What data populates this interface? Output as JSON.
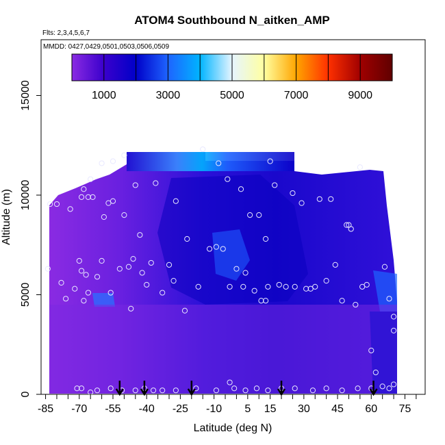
{
  "chart_data": {
    "type": "heatmap",
    "title": "ATOM4 Southbound N_aitken_AMP",
    "flights_note": "Flts: 2,3,4,5,6,7",
    "dates_note": "MMDD: 0427,0429,0501,0503,0506,0509",
    "xlabel": "Latitude (deg N)",
    "ylabel": "Altitude (m)",
    "xlim": [
      -87,
      84
    ],
    "ylim": [
      0,
      17800
    ],
    "x_ticks": [
      -85,
      -70,
      -55,
      -40,
      -25,
      -10,
      5,
      15,
      30,
      45,
      60,
      75
    ],
    "x_ticks_minor": [
      -80,
      -75,
      -65,
      -60,
      -50,
      -45,
      -35,
      -30,
      -20,
      -15,
      -5,
      0,
      10,
      20,
      25,
      35,
      40,
      50,
      55,
      65,
      70,
      80
    ],
    "y_ticks": [
      0,
      5000,
      10000,
      15000
    ],
    "colorbar": {
      "min": 0,
      "max": 10000,
      "tick_values": [
        1000,
        3000,
        5000,
        7000,
        9000
      ],
      "boundaries": [
        1000,
        2000,
        3000,
        4000,
        5000,
        6000,
        7000,
        8000,
        9000,
        10000
      ],
      "colors": [
        "#8a2be2",
        "#3a00cc",
        "#0000c8",
        "#1e64ff",
        "#00b4ff",
        "#e6f5ff",
        "#ffffa0",
        "#ffa500",
        "#ff3000",
        "#a00000"
      ]
    },
    "arrow_latitudes": [
      -52,
      -41,
      -20,
      20,
      61
    ],
    "profile_samples": [
      [
        -84,
        6300
      ],
      [
        -83,
        9550
      ],
      [
        -80,
        9550
      ],
      [
        -78,
        5600
      ],
      [
        -76,
        4800
      ],
      [
        -74,
        9300
      ],
      [
        -72,
        5300
      ],
      [
        -70,
        6700
      ],
      [
        -69,
        6200
      ],
      [
        -69,
        9900
      ],
      [
        -68,
        10300
      ],
      [
        -68,
        4700
      ],
      [
        -67,
        6000
      ],
      [
        -66,
        9900
      ],
      [
        -66,
        5100
      ],
      [
        -65,
        10800
      ],
      [
        -64,
        9900
      ],
      [
        -62,
        5900
      ],
      [
        -60,
        11600
      ],
      [
        -60,
        6700
      ],
      [
        -59,
        8900
      ],
      [
        -57,
        9600
      ],
      [
        -56,
        5100
      ],
      [
        -55,
        9700
      ],
      [
        -55,
        11700
      ],
      [
        -52,
        6300
      ],
      [
        -50,
        9000
      ],
      [
        -50,
        12000
      ],
      [
        -48,
        6400
      ],
      [
        -47,
        4300
      ],
      [
        -46,
        6800
      ],
      [
        -45,
        10500
      ],
      [
        -43,
        8000
      ],
      [
        -42,
        6100
      ],
      [
        -40,
        5500
      ],
      [
        -38,
        6600
      ],
      [
        -36,
        10600
      ],
      [
        -33,
        5100
      ],
      [
        -30,
        6500
      ],
      [
        -28,
        5700
      ],
      [
        -27,
        9700
      ],
      [
        -23,
        4200
      ],
      [
        -22,
        7800
      ],
      [
        -17,
        5400
      ],
      [
        -15,
        12300
      ],
      [
        -12,
        7300
      ],
      [
        -9,
        7400
      ],
      [
        -8,
        11600
      ],
      [
        -6,
        7300
      ],
      [
        -4,
        10800
      ],
      [
        -3,
        5400
      ],
      [
        0,
        6300
      ],
      [
        2,
        10300
      ],
      [
        3,
        5400
      ],
      [
        4,
        6100
      ],
      [
        6,
        9000
      ],
      [
        8,
        5200
      ],
      [
        10,
        9000
      ],
      [
        11,
        4700
      ],
      [
        13,
        7800
      ],
      [
        13,
        4700
      ],
      [
        14,
        5400
      ],
      [
        15,
        11700
      ],
      [
        17,
        10500
      ],
      [
        19,
        5500
      ],
      [
        22,
        5400
      ],
      [
        25,
        10100
      ],
      [
        26,
        5400
      ],
      [
        29,
        9600
      ],
      [
        31,
        5300
      ],
      [
        33,
        5300
      ],
      [
        35,
        5400
      ],
      [
        37,
        9800
      ],
      [
        40,
        5700
      ],
      [
        42,
        9800
      ],
      [
        44,
        6500
      ],
      [
        47,
        4700
      ],
      [
        49,
        8500
      ],
      [
        50,
        8500
      ],
      [
        51,
        8300
      ],
      [
        53,
        4500
      ],
      [
        55,
        11400
      ],
      [
        56,
        5400
      ],
      [
        58,
        5500
      ],
      [
        60,
        2200
      ],
      [
        62,
        1100
      ],
      [
        66,
        6400
      ],
      [
        68,
        4800
      ],
      [
        70,
        3900
      ],
      [
        70,
        3200
      ],
      [
        -71,
        300
      ],
      [
        -69,
        300
      ],
      [
        -65,
        100
      ],
      [
        -62,
        200
      ],
      [
        -56,
        300
      ],
      [
        -51,
        200
      ],
      [
        -45,
        200
      ],
      [
        -41,
        300
      ],
      [
        -37,
        200
      ],
      [
        -33,
        200
      ],
      [
        -27,
        200
      ],
      [
        -18,
        300
      ],
      [
        -9,
        200
      ],
      [
        -3,
        600
      ],
      [
        -1,
        300
      ],
      [
        4,
        200
      ],
      [
        9,
        300
      ],
      [
        14,
        200
      ],
      [
        20,
        300
      ],
      [
        26,
        300
      ],
      [
        34,
        200
      ],
      [
        40,
        300
      ],
      [
        47,
        200
      ],
      [
        54,
        300
      ],
      [
        60,
        300
      ],
      [
        65,
        400
      ],
      [
        68,
        300
      ],
      [
        70,
        500
      ]
    ],
    "note": "Colored field shows interpolated N_aitken_AMP values along flight tracks; values mostly below 2000 with elevated patches near 12000 m (-15 to 0 deg N) and near 5000 m (-58 deg N, 70 deg N)."
  }
}
